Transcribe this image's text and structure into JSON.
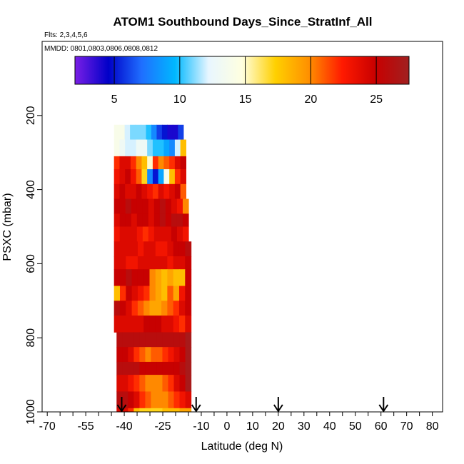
{
  "chart_data": {
    "type": "heatmap",
    "title": "ATOM1 Southbound Days_Since_StratInf_All",
    "subtitle": "Flts: 2,3,4,5,6",
    "annotation": "MMDD: 0801,0803,0806,0808,0812",
    "xlabel": "Latitude (deg N)",
    "ylabel": "PSXC (mbar)",
    "xlim": [
      -72,
      84
    ],
    "ylim": [
      1000,
      0
    ],
    "x_ticks": [
      -70,
      -55,
      -40,
      -25,
      -10,
      0,
      10,
      20,
      30,
      40,
      50,
      60,
      70,
      80
    ],
    "x_tick_labels": [
      "-70",
      "-55",
      "-40",
      "-25",
      "-10",
      "0",
      "10",
      "20",
      "30",
      "40",
      "50",
      "60",
      "70",
      "80"
    ],
    "y_ticks": [
      200,
      400,
      600,
      800,
      1000
    ],
    "y_tick_labels": [
      "200",
      "400",
      "600",
      "800",
      "1000"
    ],
    "colorbar": {
      "range": [
        2,
        27.5
      ],
      "ticks": [
        5,
        10,
        15,
        20,
        25
      ],
      "tick_labels": [
        "5",
        "10",
        "15",
        "20",
        "25"
      ],
      "colors": [
        "#7a1fe6",
        "#0000c8",
        "#1f6fff",
        "#00b8ff",
        "#e8f6ff",
        "#ffffe0",
        "#ffd000",
        "#ff9000",
        "#ff1a00",
        "#c80000",
        "#a02020"
      ]
    },
    "layers": [
      {
        "p_top": 225,
        "p_bottom": 265,
        "lat_start": -44,
        "lat_end": -17,
        "values": [
          14,
          14,
          12,
          11,
          11,
          11,
          10,
          8,
          6,
          5,
          4,
          4,
          6
        ]
      },
      {
        "p_top": 265,
        "p_bottom": 310,
        "lat_start": -44,
        "lat_end": -16,
        "values": [
          14,
          13,
          12,
          12,
          13,
          13,
          11,
          10,
          10,
          9,
          8,
          12,
          18
        ]
      },
      {
        "p_top": 310,
        "p_bottom": 345,
        "lat_start": -44,
        "lat_end": -16,
        "values": [
          22,
          24,
          24,
          22,
          20,
          18,
          15,
          22,
          20,
          21,
          22,
          24,
          25
        ]
      },
      {
        "p_top": 345,
        "p_bottom": 385,
        "lat_start": -44,
        "lat_end": -16,
        "values": [
          23,
          24,
          25,
          23,
          21,
          17,
          8,
          5,
          9,
          14,
          18,
          22,
          24
        ]
      },
      {
        "p_top": 385,
        "p_bottom": 425,
        "lat_start": -44,
        "lat_end": -16,
        "values": [
          24,
          25,
          24,
          24,
          25,
          24,
          23,
          22,
          24,
          23,
          24,
          25,
          21
        ]
      },
      {
        "p_top": 425,
        "p_bottom": 465,
        "lat_start": -44,
        "lat_end": -15,
        "values": [
          25,
          25,
          26,
          25,
          25,
          25,
          24,
          25,
          26,
          25,
          24,
          23,
          20
        ]
      },
      {
        "p_top": 465,
        "p_bottom": 500,
        "lat_start": -44,
        "lat_end": -15,
        "values": [
          24,
          25,
          25,
          24,
          25,
          25,
          24,
          25,
          26,
          25,
          26,
          26,
          25
        ]
      },
      {
        "p_top": 500,
        "p_bottom": 540,
        "lat_start": -44,
        "lat_end": -15,
        "values": [
          23,
          24,
          24,
          24,
          23,
          22,
          23,
          24,
          24,
          24,
          25,
          24,
          23
        ]
      },
      {
        "p_top": 540,
        "p_bottom": 580,
        "lat_start": -44,
        "lat_end": -14,
        "values": [
          24,
          24,
          24,
          24,
          23,
          24,
          24,
          23,
          23,
          24,
          25,
          25,
          26
        ]
      },
      {
        "p_top": 580,
        "p_bottom": 615,
        "lat_start": -44,
        "lat_end": -14,
        "values": [
          24,
          24,
          23,
          23,
          24,
          24,
          24,
          24,
          24,
          23,
          24,
          24,
          25
        ]
      },
      {
        "p_top": 615,
        "p_bottom": 660,
        "lat_start": -44,
        "lat_end": -14,
        "values": [
          25,
          25,
          26,
          25,
          25,
          25,
          20,
          19,
          18,
          19,
          18,
          18,
          25
        ]
      },
      {
        "p_top": 660,
        "p_bottom": 700,
        "lat_start": -44,
        "lat_end": -14,
        "values": [
          18,
          22,
          25,
          24,
          23,
          22,
          20,
          19,
          18,
          21,
          19,
          23,
          25
        ]
      },
      {
        "p_top": 700,
        "p_bottom": 740,
        "lat_start": -44,
        "lat_end": -14,
        "values": [
          26,
          25,
          24,
          22,
          21,
          20,
          19,
          19,
          20,
          21,
          22,
          24,
          25
        ]
      },
      {
        "p_top": 740,
        "p_bottom": 785,
        "lat_start": -44,
        "lat_end": -14,
        "values": [
          24,
          24,
          24,
          24,
          24,
          25,
          25,
          25,
          24,
          24,
          23,
          22,
          24
        ]
      },
      {
        "p_top": 785,
        "p_bottom": 825,
        "lat_start": -43,
        "lat_end": -14,
        "values": [
          26,
          26,
          26,
          26,
          26,
          26,
          26,
          26,
          26,
          26,
          26,
          26,
          27
        ]
      },
      {
        "p_top": 825,
        "p_bottom": 865,
        "lat_start": -43,
        "lat_end": -14,
        "values": [
          25,
          25,
          24,
          22,
          21,
          20,
          21,
          21,
          22,
          23,
          24,
          25,
          27
        ]
      },
      {
        "p_top": 865,
        "p_bottom": 900,
        "lat_start": -43,
        "lat_end": -14,
        "values": [
          26,
          26,
          26,
          26,
          25,
          25,
          25,
          25,
          25,
          25,
          25,
          26,
          27
        ]
      },
      {
        "p_top": 900,
        "p_bottom": 945,
        "lat_start": -43,
        "lat_end": -14,
        "values": [
          24,
          24,
          23,
          22,
          21,
          20,
          20,
          20,
          21,
          22,
          24,
          25,
          27
        ]
      },
      {
        "p_top": 945,
        "p_bottom": 990,
        "lat_start": -43,
        "lat_end": -14,
        "values": [
          26,
          26,
          25,
          24,
          22,
          21,
          20,
          20,
          20,
          21,
          22,
          23,
          24
        ]
      },
      {
        "p_top": 990,
        "p_bottom": 1000,
        "lat_start": -43,
        "lat_end": -14,
        "values": [
          24,
          24,
          22,
          18,
          17,
          17,
          17,
          17,
          18,
          18,
          18,
          19,
          19
        ]
      }
    ],
    "arrows_lat": [
      -41,
      -12,
      20,
      61
    ]
  }
}
